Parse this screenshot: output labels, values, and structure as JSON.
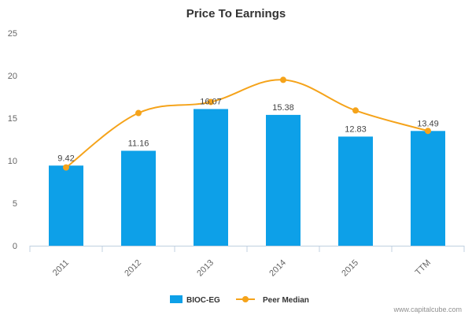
{
  "chart_data": {
    "type": "bar",
    "title": "Price To Earnings",
    "categories": [
      "2011",
      "2012",
      "2013",
      "2014",
      "2015",
      "TTM"
    ],
    "series": [
      {
        "name": "BIOC-EG",
        "type": "bar",
        "color": "#0da0e8",
        "values": [
          9.42,
          11.16,
          16.07,
          15.38,
          12.83,
          13.49
        ],
        "data_labels": [
          "9.42",
          "11.16",
          "16.07",
          "15.38",
          "12.83",
          "13.49"
        ]
      },
      {
        "name": "Peer Median",
        "type": "line",
        "color": "#f5a31a",
        "values": [
          9.2,
          15.6,
          16.9,
          19.5,
          15.9,
          13.5
        ]
      }
    ],
    "ylim": [
      0,
      25
    ],
    "yticks": [
      "0",
      "5",
      "10",
      "15",
      "20",
      "25"
    ],
    "grid": false,
    "legend": "bottom-center"
  },
  "credit": "www.capitalcube.com"
}
